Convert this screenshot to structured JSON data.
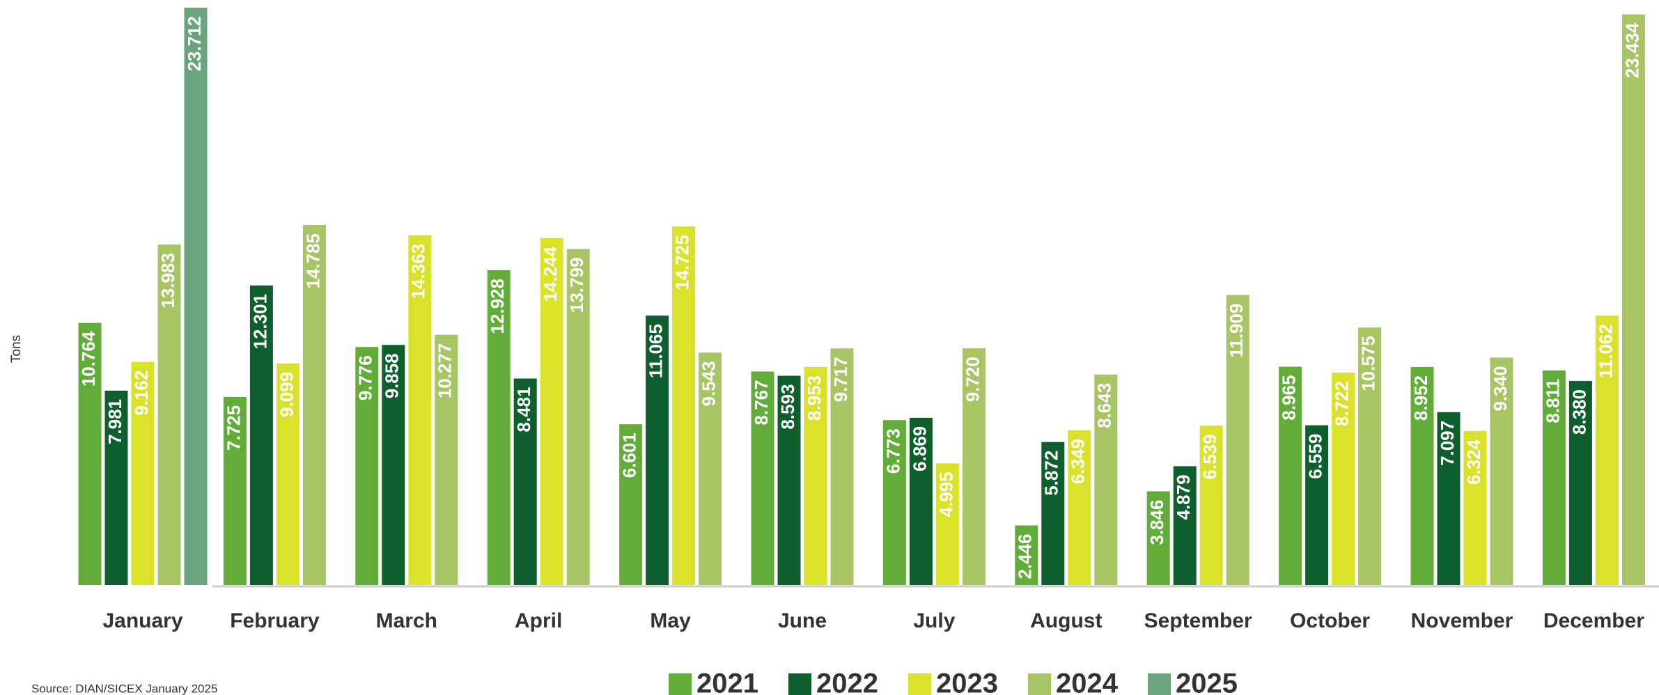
{
  "chart_data": {
    "type": "bar",
    "y_label": "Tons",
    "source": "Source: DIAN/SICEX January 2025",
    "categories": [
      "January",
      "February",
      "March",
      "April",
      "May",
      "June",
      "July",
      "August",
      "September",
      "October",
      "November",
      "December"
    ],
    "series": [
      {
        "name": "2021",
        "color": "#62ad3a",
        "values": [
          10764,
          7725,
          9776,
          12928,
          6601,
          8767,
          6773,
          2446,
          3846,
          8965,
          8952,
          8811
        ],
        "value_labels": [
          "10.764",
          "7.725",
          "9.776",
          "12.928",
          "6.601",
          "8.767",
          "6.773",
          "2.446",
          "3.846",
          "8.965",
          "8.952",
          "8.811"
        ]
      },
      {
        "name": "2022",
        "color": "#0f5e2e",
        "values": [
          7981,
          12301,
          9858,
          8481,
          11065,
          8593,
          6869,
          5872,
          4879,
          6559,
          7097,
          8380
        ],
        "value_labels": [
          "7.981",
          "12.301",
          "9.858",
          "8.481",
          "11.065",
          "8.593",
          "6.869",
          "5.872",
          "4.879",
          "6.559",
          "7.097",
          "8.380"
        ]
      },
      {
        "name": "2023",
        "color": "#d9e12a",
        "values": [
          9162,
          9099,
          14363,
          14244,
          14725,
          8953,
          4995,
          6349,
          6539,
          8722,
          6324,
          11062
        ],
        "value_labels": [
          "9.162",
          "9.099",
          "14.363",
          "14.244",
          "14.725",
          "8.953",
          "4.995",
          "6.349",
          "6.539",
          "8.722",
          "6.324",
          "11.062"
        ]
      },
      {
        "name": "2024",
        "color": "#a8c566",
        "values": [
          13983,
          14785,
          10277,
          13799,
          9543,
          9717,
          9720,
          8643,
          11909,
          10575,
          9340,
          23434
        ],
        "value_labels": [
          "13.983",
          "14.785",
          "10.277",
          "13.799",
          "9.543",
          "9.717",
          "9.720",
          "8.643",
          "11.909",
          "10.575",
          "9.340",
          "23.434"
        ]
      },
      {
        "name": "2025",
        "color": "#6aa47e",
        "values": [
          23712,
          null,
          null,
          null,
          null,
          null,
          null,
          null,
          null,
          null,
          null,
          null
        ],
        "value_labels": [
          "23.712",
          null,
          null,
          null,
          null,
          null,
          null,
          null,
          null,
          null,
          null,
          null
        ]
      }
    ]
  }
}
